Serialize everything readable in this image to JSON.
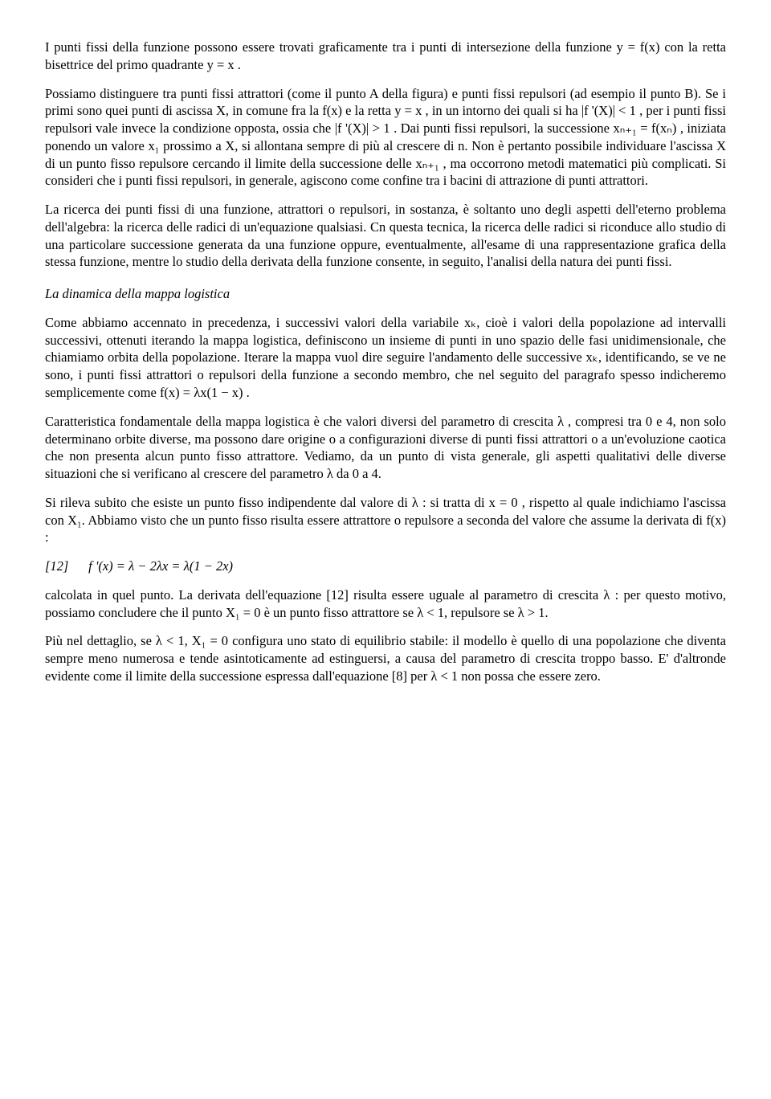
{
  "para1": "I punti fissi della funzione possono essere trovati graficamente tra i punti di intersezione della funzione y = f(x) con la retta bisettrice del primo quadrante y = x .",
  "para2": "Possiamo distinguere tra punti fissi attrattori (come il punto A della figura) e punti fissi repulsori (ad esempio il punto B). Se i primi sono quei punti di ascissa X, in comune fra la f(x) e la retta y = x , in un intorno dei quali si ha |f '(X)| < 1 , per i punti fissi repulsori vale invece la condizione opposta, ossia che |f '(X)| > 1 . Dai punti fissi repulsori, la successione xₙ₊₁ = f(xₙ) , iniziata ponendo un valore x₁ prossimo a X, si allontana sempre di più al crescere di n. Non è pertanto possibile individuare l'ascissa X di un punto fisso repulsore cercando il limite della successione delle xₙ₊₁ , ma occorrono metodi matematici più complicati. Si consideri che i punti fissi repulsori, in generale, agiscono come confine tra i bacini di attrazione di punti attrattori.",
  "para3": "La ricerca dei punti fissi di una funzione, attrattori o repulsori, in sostanza, è soltanto uno degli aspetti dell'eterno problema dell'algebra: la ricerca delle radici di un'equazione qualsiasi. Cn questa tecnica, la ricerca delle radici si riconduce allo studio di una particolare successione generata da una funzione oppure, eventualmente, all'esame di una rappresentazione grafica della stessa funzione, mentre lo studio della derivata della funzione consente, in seguito, l'analisi della natura dei punti fissi.",
  "section_title": "La dinamica della mappa logistica",
  "para4": "Come abbiamo accennato in precedenza, i successivi valori della variabile xₖ, cioè i valori della popolazione ad intervalli successivi, ottenuti iterando la mappa logistica, definiscono un insieme di punti in uno spazio delle fasi unidimensionale, che chiamiamo orbita della popolazione. Iterare la mappa vuol dire seguire l'andamento delle successive xₖ, identificando, se ve ne sono, i punti fissi attrattori o repulsori della funzione a secondo membro, che nel seguito del paragrafo spesso indicheremo semplicemente come f(x) = λx(1 − x) .",
  "para5": "Caratteristica fondamentale della mappa logistica è che valori diversi del parametro di crescita λ , compresi tra 0 e 4, non solo determinano orbite diverse, ma possono dare origine o a configurazioni diverse di punti fissi attrattori o a un'evoluzione caotica che non presenta alcun punto fisso attrattore. Vediamo, da un punto di vista generale, gli aspetti qualitativi delle diverse situazioni che si verificano al crescere del parametro λ da 0 a 4.",
  "para6": "Si rileva subito che esiste un punto fisso indipendente dal valore di λ : si tratta di x = 0 , rispetto al quale indichiamo l'ascissa con X₁. Abbiamo visto che un punto fisso risulta essere attrattore o repulsore a seconda del valore che assume la derivata di f(x) :",
  "eq12_label": "[12]",
  "eq12": "f '(x) = λ − 2λx = λ(1 − 2x)",
  "para7": "calcolata in quel punto. La derivata dell'equazione [12] risulta essere uguale al parametro di crescita λ : per questo motivo, possiamo concludere che il punto X₁ = 0  è un punto fisso attrattore se λ < 1, repulsore se λ > 1.",
  "para8": "Più nel dettaglio, se λ < 1,  X₁ = 0  configura uno stato di equilibrio stabile: il modello è quello di una popolazione che diventa sempre meno numerosa e tende asintoticamente ad estinguersi, a causa del parametro di crescita troppo basso. E' d'altronde evidente come il limite della successione espressa dall'equazione [8] per λ < 1 non possa che essere zero."
}
